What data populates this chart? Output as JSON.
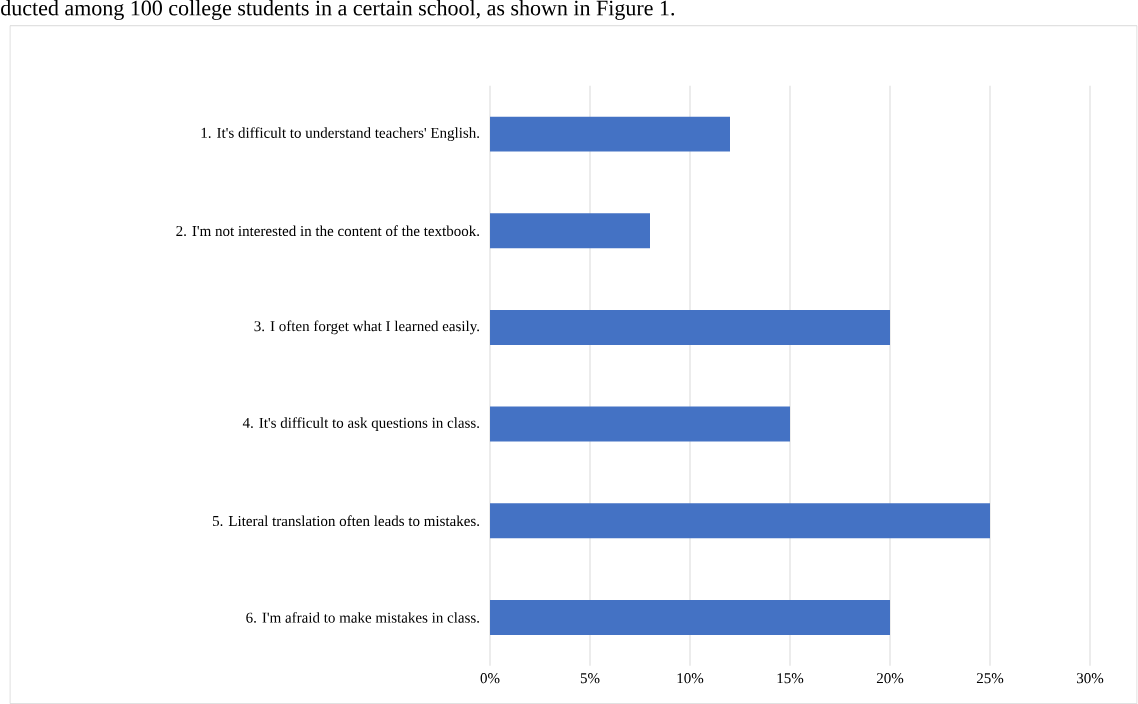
{
  "chart_data": {
    "type": "bar",
    "orientation": "horizontal",
    "categories": [
      "1. It's difficult to understand teachers' English.",
      "2. I'm not interested in the content of the textbook.",
      "3. I often forget what I learned easily.",
      "4. It's difficult to ask questions in class.",
      "5. Literal translation often leads to mistakes.",
      "6. I'm afraid to make mistakes in class."
    ],
    "values": [
      12,
      8,
      20,
      15,
      25,
      20
    ],
    "color": "#4472c4",
    "xlim": [
      0,
      30
    ],
    "xticks": [
      {
        "value": 0,
        "label": "0%"
      },
      {
        "value": 5,
        "label": "5%"
      },
      {
        "value": 10,
        "label": "10%"
      },
      {
        "value": 15,
        "label": "15%"
      },
      {
        "value": 20,
        "label": "20%"
      },
      {
        "value": 25,
        "label": "25%"
      },
      {
        "value": 30,
        "label": "30%"
      }
    ],
    "grid": "x",
    "annotations": [
      "ducted among 100 college students in a certain school, as shown in Figure 1."
    ]
  }
}
